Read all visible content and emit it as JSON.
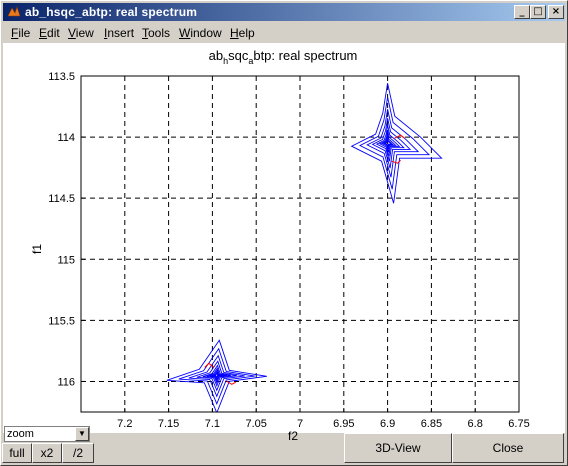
{
  "window": {
    "title": "ab_hsqc_abtp: real spectrum",
    "controls": {
      "minimize": "_",
      "maximize": "□",
      "close": "×"
    }
  },
  "menu": [
    {
      "label": "File",
      "mnemonic": "F",
      "rest": "ile"
    },
    {
      "label": "Edit",
      "mnemonic": "E",
      "rest": "dit"
    },
    {
      "label": "View",
      "mnemonic": "V",
      "rest": "iew"
    },
    {
      "label": "Insert",
      "mnemonic": "I",
      "rest": "nsert"
    },
    {
      "label": "Tools",
      "mnemonic": "T",
      "rest": "ools"
    },
    {
      "label": "Window",
      "mnemonic": "W",
      "rest": "indow"
    },
    {
      "label": "Help",
      "mnemonic": "H",
      "rest": "elp"
    }
  ],
  "chart_data": {
    "type": "contour",
    "title_parts": {
      "a": "ab",
      "sub1": "h",
      "b": "sqc",
      "sub2": "a",
      "c": "btp: real spectrum"
    },
    "xlabel": "f2",
    "ylabel": "f1",
    "xlim": [
      7.25,
      6.75
    ],
    "ylim": [
      113.5,
      116.25
    ],
    "x_reversed": true,
    "y_reversed": true,
    "xticks": [
      "7.2",
      "7.15",
      "7.1",
      "7.05",
      "7",
      "6.95",
      "6.9",
      "6.85",
      "6.8",
      "6.75"
    ],
    "xtick_values": [
      7.2,
      7.15,
      7.1,
      7.05,
      7.0,
      6.95,
      6.9,
      6.85,
      6.8,
      6.75
    ],
    "yticks": [
      "113.5",
      "114",
      "114.5",
      "115",
      "115.5",
      "116"
    ],
    "ytick_values": [
      113.5,
      114.0,
      114.5,
      115.0,
      115.5,
      116.0
    ],
    "grid": true,
    "peaks": [
      {
        "x": 6.9,
        "y": 114.05,
        "color": "#0000ff"
      },
      {
        "x": 7.095,
        "y": 115.95,
        "color": "#0000ff"
      }
    ],
    "colors": {
      "positive": "#0000ff",
      "negative": "#ff0000"
    }
  },
  "controls": {
    "zoom_select": "zoom",
    "full": "full",
    "x2": "x2",
    "half": "/2",
    "view3d": "3D-View",
    "close": "Close"
  }
}
